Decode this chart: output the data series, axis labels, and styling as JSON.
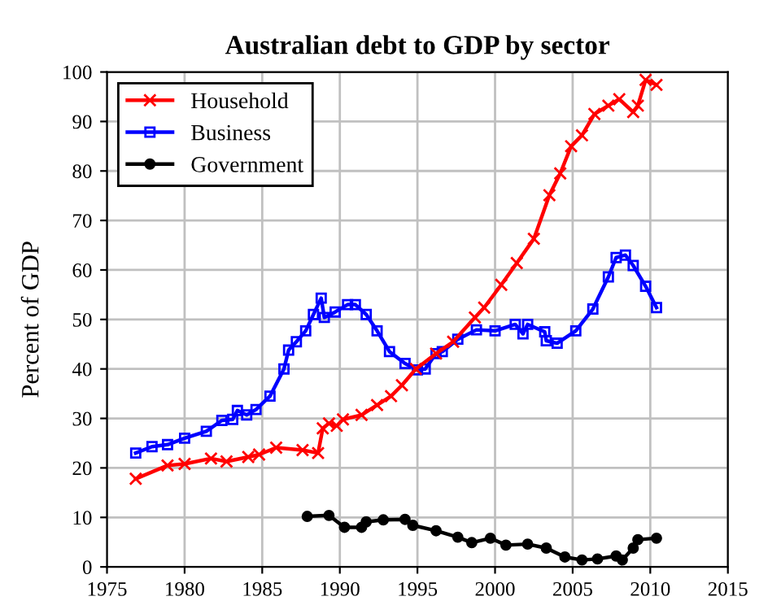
{
  "chart_data": {
    "type": "line",
    "title": "Australian debt to GDP by sector",
    "ylabel": "Percent of GDP",
    "xlim": [
      1975,
      2015
    ],
    "xticks": [
      1975,
      1980,
      1985,
      1990,
      1995,
      2000,
      2005,
      2010,
      2015
    ],
    "ylim": [
      0,
      100
    ],
    "yticks": [
      0,
      10,
      20,
      30,
      40,
      50,
      60,
      70,
      80,
      90,
      100
    ],
    "grid": true,
    "legend": "top left",
    "line_style": "solid",
    "series": [
      {
        "name": "Household",
        "color": "#ff0000",
        "marker": "cross",
        "x": [
          1976.85,
          1978.9,
          1980,
          1981.7,
          1982.7,
          1984.1,
          1984.8,
          1985.9,
          1987.6,
          1988.6,
          1988.9,
          1989.3,
          1989.8,
          1990.2,
          1991.4,
          1992.4,
          1993.3,
          1994.0,
          1994.9,
          1996.2,
          1997.3,
          1998.7,
          1999.3,
          2000.4,
          2001.4,
          2002.5,
          2003.5,
          2004.2,
          2004.9,
          2005.6,
          2006.4,
          2007.3,
          2008.0,
          2008.9,
          2009.2,
          2009.7,
          2010.4
        ],
        "values": [
          17.8,
          20.5,
          20.8,
          21.9,
          21.3,
          22.2,
          22.7,
          24.1,
          23.6,
          23.0,
          28.0,
          29.0,
          28.5,
          29.8,
          30.7,
          32.7,
          34.5,
          36.7,
          40.0,
          43.1,
          45.5,
          50.4,
          52.4,
          57.0,
          61.4,
          66.3,
          75.1,
          79.5,
          85.0,
          87.2,
          91.5,
          93.2,
          94.5,
          91.9,
          93.2,
          98.4,
          97.4
        ]
      },
      {
        "name": "Business",
        "color": "#0000ff",
        "marker": "square",
        "x": [
          1976.85,
          1977.9,
          1978.9,
          1980,
          1981.4,
          1982.4,
          1983.1,
          1983.4,
          1984.0,
          1984.6,
          1985.5,
          1986.4,
          1986.7,
          1987.2,
          1987.8,
          1988.3,
          1988.8,
          1989.0,
          1989.7,
          1990.5,
          1991.0,
          1991.7,
          1992.4,
          1993.2,
          1994.2,
          1995.0,
          1995.5,
          1996.2,
          1996.6,
          1997.6,
          1998.8,
          2000.0,
          2001.3,
          2001.8,
          2002.1,
          2003.2,
          2003.3,
          2004.0,
          2005.2,
          2006.3,
          2007.3,
          2007.8,
          2008.4,
          2008.9,
          2009.7,
          2010.4
        ],
        "values": [
          23.0,
          24.3,
          24.7,
          26.0,
          27.4,
          29.6,
          29.8,
          31.6,
          30.7,
          31.8,
          34.5,
          40.0,
          43.8,
          45.5,
          47.7,
          51.0,
          54.3,
          50.4,
          51.5,
          53.0,
          53.0,
          51.0,
          47.7,
          43.5,
          41.1,
          39.8,
          40.0,
          43.1,
          43.5,
          46.0,
          47.9,
          47.7,
          49.0,
          47.1,
          49.0,
          47.5,
          45.7,
          45.2,
          47.7,
          52.1,
          58.6,
          62.5,
          63.0,
          60.9,
          56.7,
          52.4
        ]
      },
      {
        "name": "Government",
        "color": "#000000",
        "marker": "circle",
        "x": [
          1987.9,
          1989.3,
          1990.3,
          1991.4,
          1991.7,
          1992.8,
          1994.2,
          1994.7,
          1996.2,
          1997.6,
          1998.5,
          1999.7,
          2000.7,
          2002.1,
          2003.3,
          2004.5,
          2005.6,
          2006.6,
          2007.8,
          2008.2,
          2008.9,
          2009.2,
          2010.4
        ],
        "values": [
          10.2,
          10.4,
          8.0,
          8.0,
          9.1,
          9.5,
          9.6,
          8.4,
          7.3,
          6.0,
          4.9,
          5.8,
          4.4,
          4.6,
          3.8,
          2.0,
          1.4,
          1.6,
          2.2,
          1.4,
          3.8,
          5.5,
          5.8
        ]
      }
    ]
  }
}
